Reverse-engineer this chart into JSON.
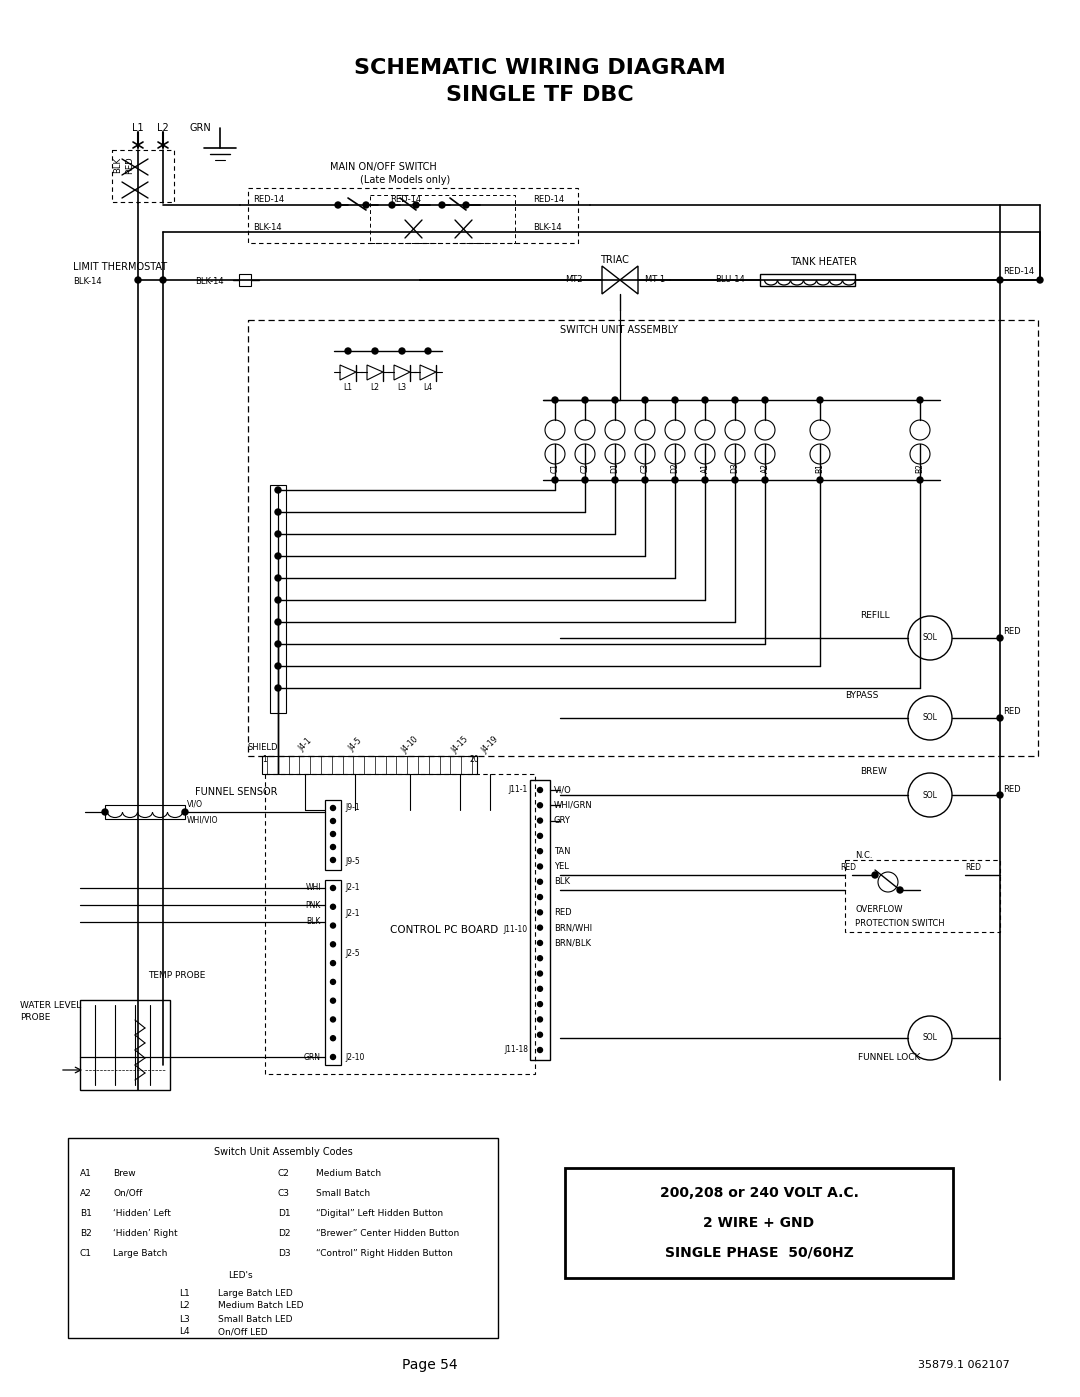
{
  "title_line1": "SCHEMATIC WIRING DIAGRAM",
  "title_line2": "SINGLE TF DBC",
  "page_number": "Page 54",
  "doc_number": "35879.1 062107",
  "bg_color": "#ffffff",
  "switch_codes": [
    [
      "A1",
      "Brew",
      "C2",
      "Medium Batch"
    ],
    [
      "A2",
      "On/Off",
      "C3",
      "Small Batch"
    ],
    [
      "B1",
      "‘Hidden’ Left",
      "D1",
      "“Digital” Left Hidden Button"
    ],
    [
      "B2",
      "‘Hidden’ Right",
      "D2",
      "“Brewer” Center Hidden Button"
    ],
    [
      "C1",
      "Large Batch",
      "D3",
      "“Control” Right Hidden Button"
    ]
  ],
  "led_codes": [
    [
      "L1",
      "Large Batch LED"
    ],
    [
      "L2",
      "Medium Batch LED"
    ],
    [
      "L3",
      "Small Batch LED"
    ],
    [
      "L4",
      "On/Off LED"
    ]
  ]
}
